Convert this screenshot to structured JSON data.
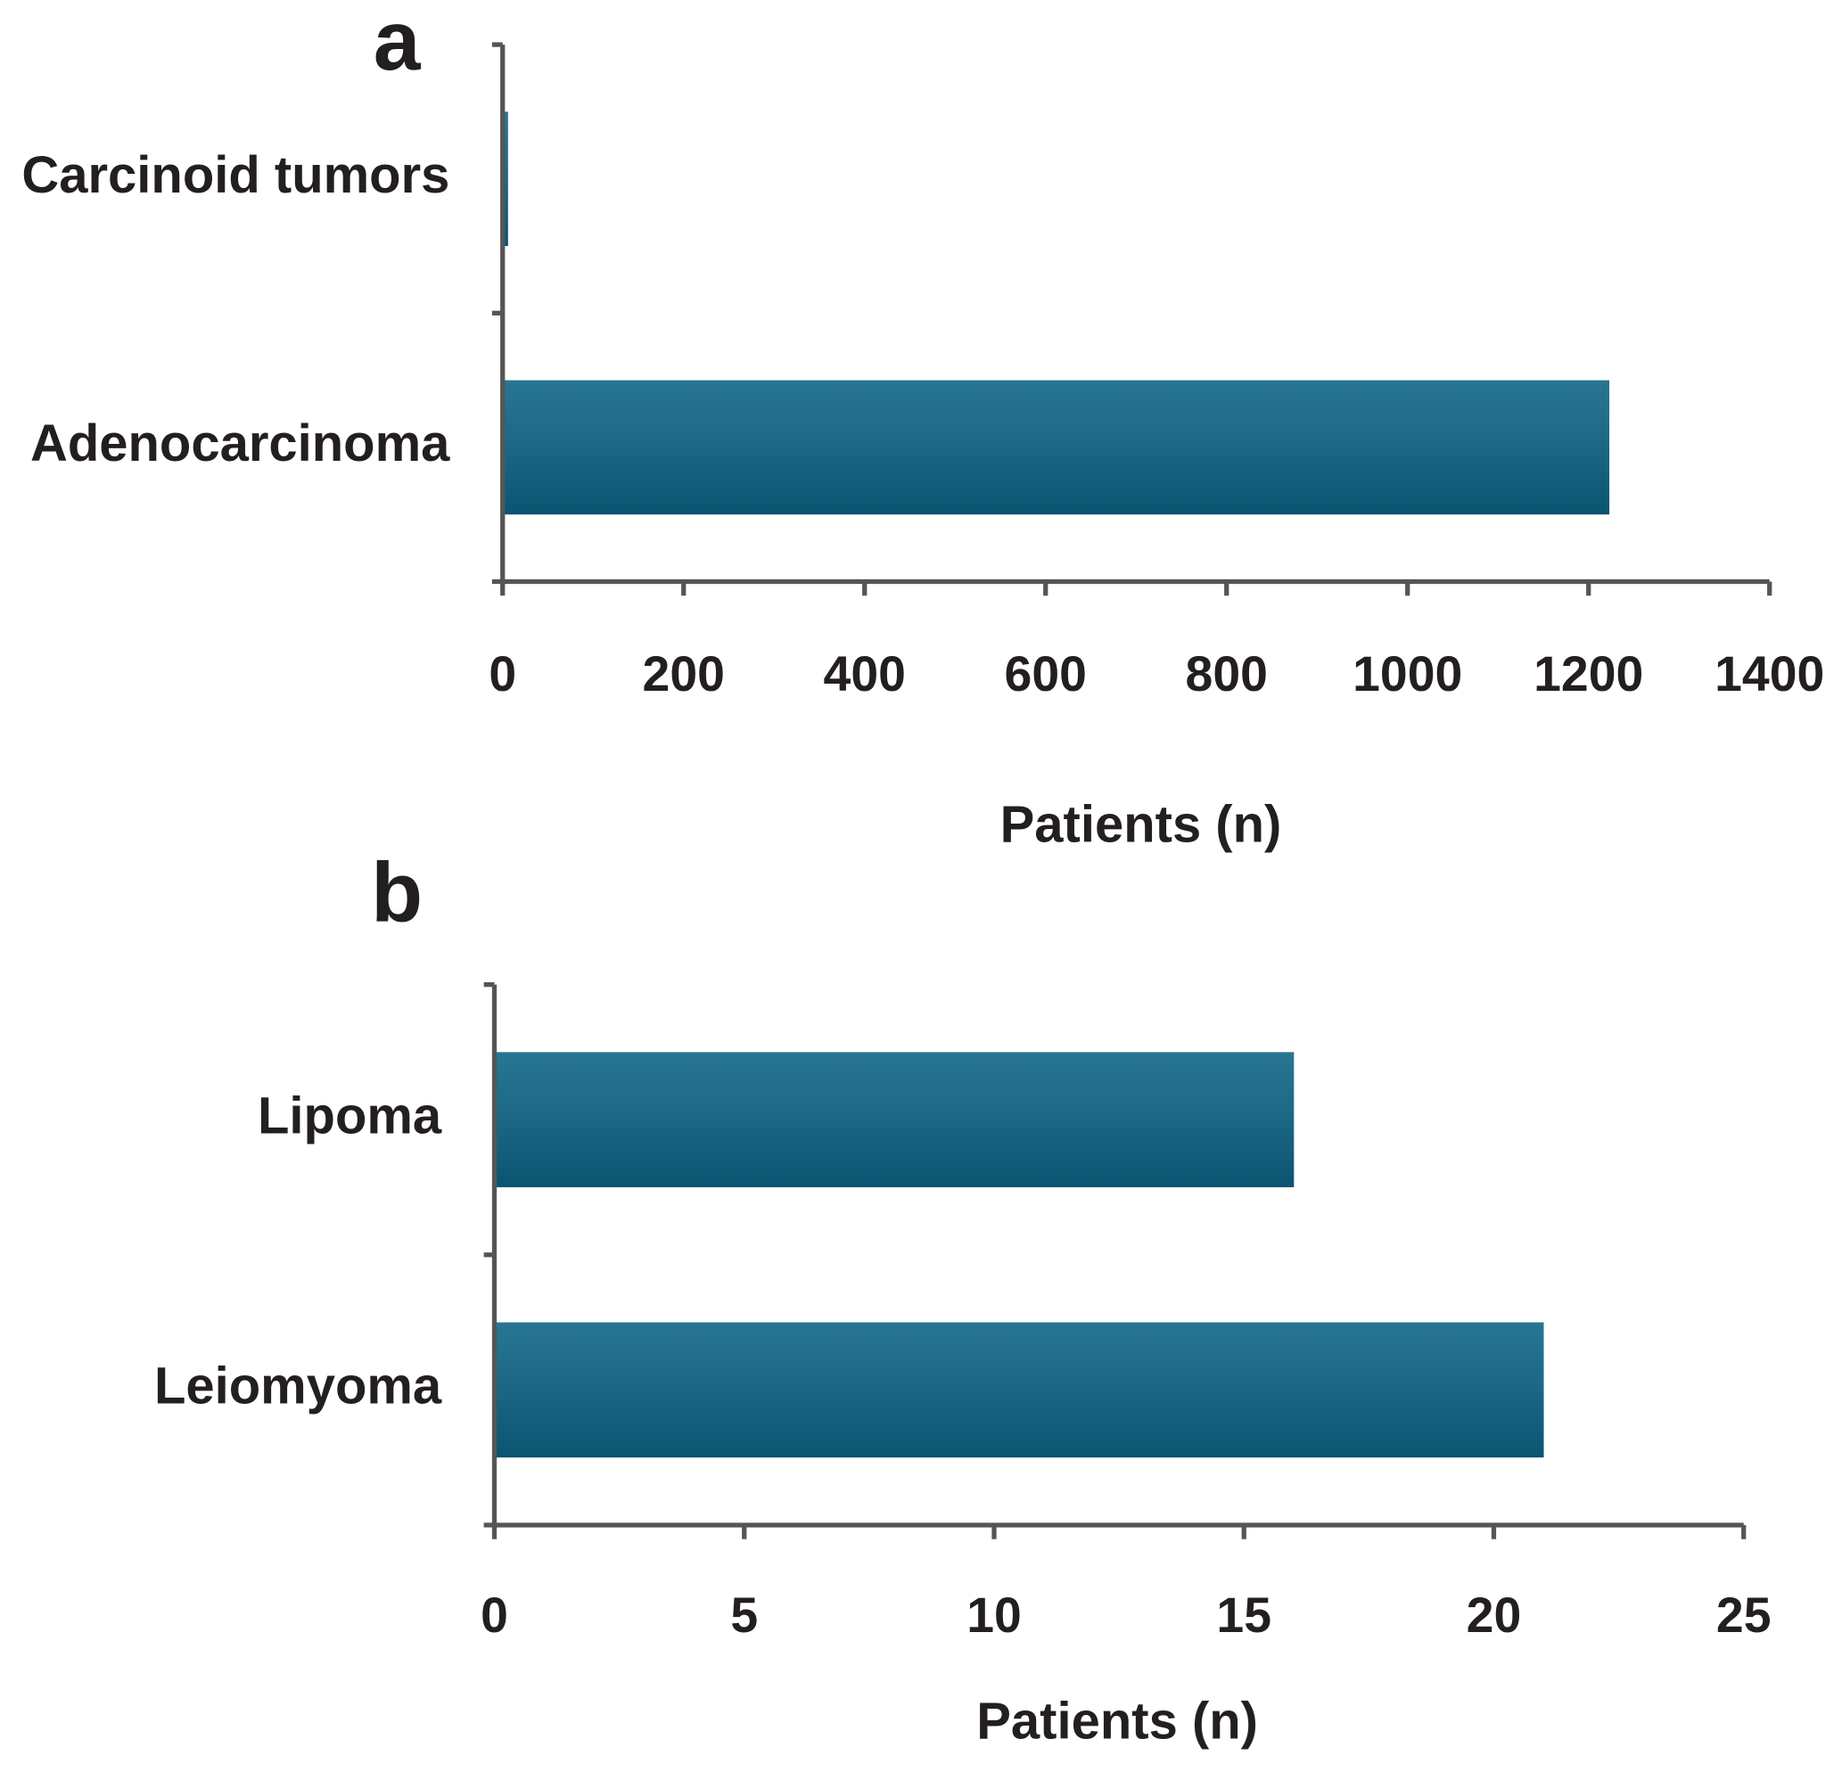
{
  "chart_data": [
    {
      "type": "barh",
      "title": "a",
      "categories": [
        "Carcinoid tumors",
        "Adenocarcinoma"
      ],
      "values": [
        6,
        1223
      ],
      "color": "#0b6384",
      "xlim": [
        0,
        1400
      ],
      "xticks": [
        0,
        200,
        400,
        600,
        800,
        1000,
        1200,
        1400
      ],
      "x_label": "Patients (n)"
    },
    {
      "type": "barh",
      "title": "b",
      "categories": [
        "Lipoma",
        "Leiomyoma"
      ],
      "values": [
        16,
        21
      ],
      "color": "#0b6384",
      "xlim": [
        0,
        25
      ],
      "xticks": [
        0,
        5,
        10,
        15,
        20,
        25
      ],
      "x_label": "Patients (n)"
    }
  ]
}
